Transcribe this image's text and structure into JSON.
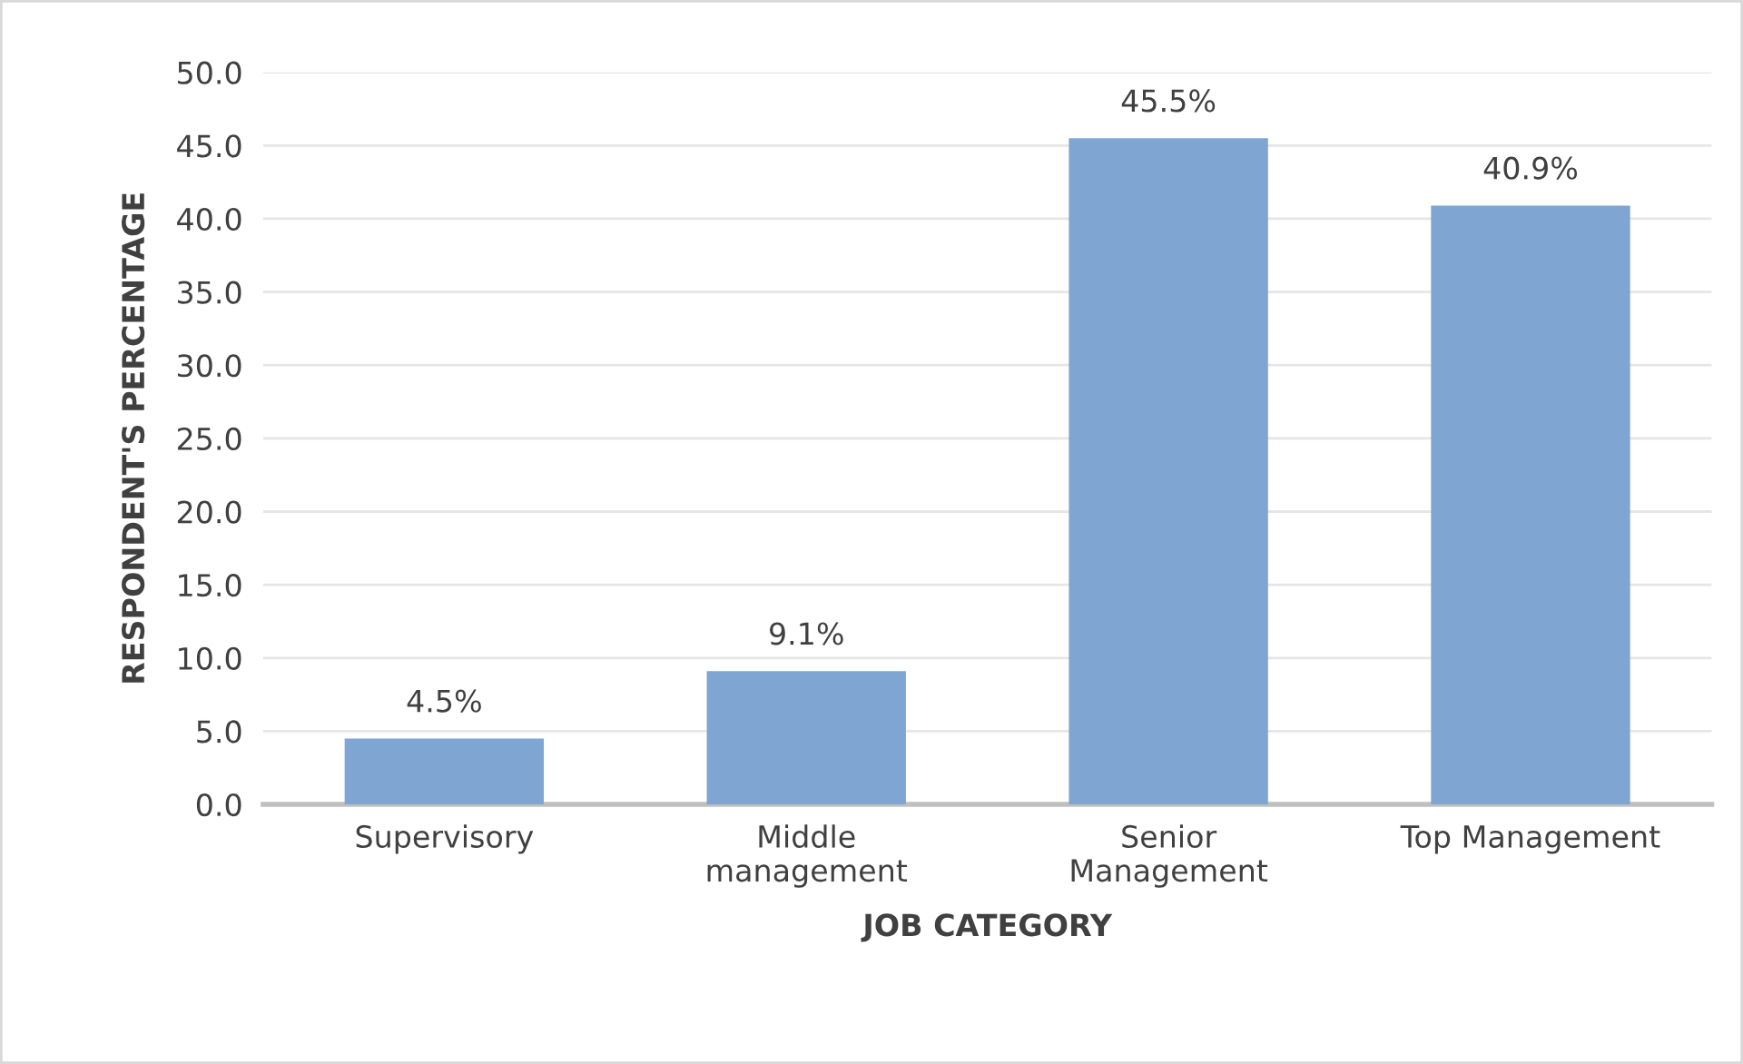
{
  "chart_data": {
    "type": "bar",
    "xlabel": "JOB CATEGORY",
    "ylabel": "RESPONDENT'S PERCENTAGE",
    "categories": [
      "Supervisory",
      "Middle\nmanagement",
      "Senior\nManagement",
      "Top Management"
    ],
    "values": [
      4.5,
      9.1,
      45.5,
      40.9
    ],
    "color": "#7fa6d3",
    "value_labels": [
      "4.5%",
      "9.1%",
      "45.5%",
      "40.9%"
    ],
    "ylim": [
      0,
      50
    ],
    "yticks": [
      {
        "value": 0,
        "label": "0.0"
      },
      {
        "value": 5,
        "label": "5.0"
      },
      {
        "value": 10,
        "label": "10.0"
      },
      {
        "value": 15,
        "label": "15.0"
      },
      {
        "value": 20,
        "label": "20.0"
      },
      {
        "value": 25,
        "label": "25.0"
      },
      {
        "value": 30,
        "label": "30.0"
      },
      {
        "value": 35,
        "label": "35.0"
      },
      {
        "value": 40,
        "label": "40.0"
      },
      {
        "value": 45,
        "label": "45.0"
      },
      {
        "value": 50,
        "label": "50.0"
      }
    ],
    "grid": "y"
  }
}
